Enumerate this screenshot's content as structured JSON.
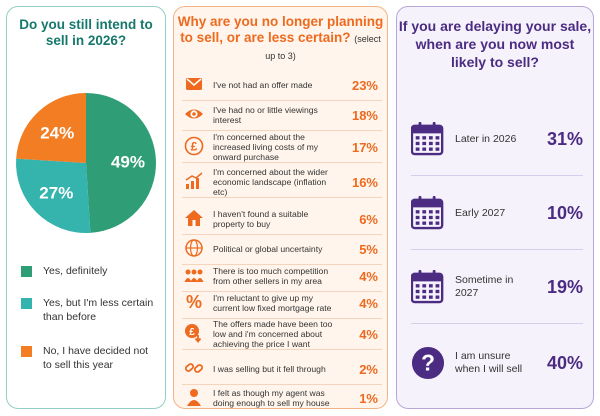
{
  "colors": {
    "teal_dark": "#16786c",
    "green": "#2f9e77",
    "teal": "#35b3ad",
    "orange": "#f27d22",
    "orange_text": "#ee6a1f",
    "purple": "#4b2c82"
  },
  "chart_data": [
    {
      "type": "pie",
      "title": "Do you still intend to sell in 2026?",
      "slices": [
        {
          "label": "Yes, definitely",
          "value": 49,
          "display": "49%",
          "color": "#2f9e77"
        },
        {
          "label": "Yes, but I'm less certain than before",
          "value": 27,
          "display": "27%",
          "color": "#35b3ad"
        },
        {
          "label": "No, I have decided not to sell this year",
          "value": 24,
          "display": "24%",
          "color": "#f27d22"
        }
      ]
    },
    {
      "type": "table",
      "title": "Why are you no longer planning to sell, or are less certain?",
      "subtitle": "(select up to 3)",
      "rows": [
        {
          "icon": "envelope-icon",
          "label": "I've not had an offer made",
          "value": "23%"
        },
        {
          "icon": "eye-icon",
          "label": "I've had no or little viewings interest",
          "value": "18%"
        },
        {
          "icon": "pound-coin-icon",
          "label": "I'm concerned about the increased living costs of my onward purchase",
          "value": "17%"
        },
        {
          "icon": "bar-chart-icon",
          "label": "I'm concerned about the wider economic landscape (inflation etc)",
          "value": "16%"
        },
        {
          "icon": "house-icon",
          "label": "I haven't found a suitable property to buy",
          "value": "6%"
        },
        {
          "icon": "globe-icon",
          "label": "Political or global uncertainty",
          "value": "5%"
        },
        {
          "icon": "people-icon",
          "label": "There is too much competition from other sellers in my area",
          "value": "4%"
        },
        {
          "icon": "percent-icon",
          "label": "I'm reluctant to give up my current low fixed mortgage rate",
          "value": "4%"
        },
        {
          "icon": "pound-down-icon",
          "label": "The offers made have been too low and i'm concerned about achieving the price I want",
          "value": "4%"
        },
        {
          "icon": "broken-link-icon",
          "label": "I was selling but it fell through",
          "value": "2%"
        },
        {
          "icon": "person-icon",
          "label": "I felt as though my agent was doing enough to sell my house",
          "value": "1%"
        }
      ]
    },
    {
      "type": "table",
      "title": "If you are delaying your sale, when are you now most likely to sell?",
      "rows": [
        {
          "icon": "calendar-icon",
          "label": "Later in 2026",
          "value": "31%"
        },
        {
          "icon": "calendar-icon",
          "label": "Early 2027",
          "value": "10%"
        },
        {
          "icon": "calendar-icon",
          "label": "Sometime in 2027",
          "value": "19%"
        },
        {
          "icon": "question-icon",
          "label": "I am unsure when I will sell",
          "value": "40%"
        }
      ]
    }
  ]
}
